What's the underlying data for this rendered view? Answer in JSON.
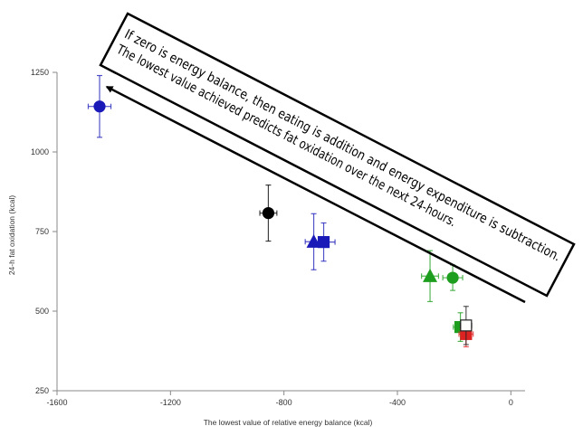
{
  "chart_data": {
    "type": "scatter",
    "title": "",
    "xlabel": "The lowest value of relative energy balance (kcal)",
    "ylabel": "24-h fat oxidation (kcal)",
    "xlim": [
      -1600,
      50
    ],
    "ylim": [
      250,
      1250
    ],
    "xticks": [
      -1600,
      -1200,
      -800,
      -400,
      0
    ],
    "yticks": [
      250,
      500,
      750,
      1000,
      1250
    ],
    "grid": false,
    "points": [
      {
        "x": -1450,
        "y": 1143,
        "xerr": 40,
        "yerr": 97,
        "shape": "circle",
        "fill": "#1a1ab8",
        "color": "#1a1ab8"
      },
      {
        "x": -855,
        "y": 808,
        "xerr": 30,
        "yerr": 88,
        "shape": "circle",
        "fill": "#000000",
        "color": "#000000"
      },
      {
        "x": -695,
        "y": 718,
        "xerr": 30,
        "yerr": 88,
        "shape": "triangle",
        "fill": "#1a1ab8",
        "color": "#1a1ab8"
      },
      {
        "x": -660,
        "y": 717,
        "xerr": 40,
        "yerr": 60,
        "shape": "square",
        "fill": "#1a1ab8",
        "color": "#1a1ab8"
      },
      {
        "x": -285,
        "y": 610,
        "xerr": 30,
        "yerr": 80,
        "shape": "triangle",
        "fill": "#1e9e1e",
        "color": "#1e9e1e"
      },
      {
        "x": -205,
        "y": 605,
        "xerr": 35,
        "yerr": 40,
        "shape": "circle",
        "fill": "#1e9e1e",
        "color": "#1e9e1e"
      },
      {
        "x": -178,
        "y": 450,
        "xerr": 25,
        "yerr": 45,
        "shape": "square",
        "fill": "#1e9e1e",
        "color": "#1e9e1e"
      },
      {
        "x": -158,
        "y": 428,
        "xerr": 25,
        "yerr": 40,
        "shape": "square",
        "fill": "#dd2222",
        "color": "#dd2222"
      },
      {
        "x": -158,
        "y": 455,
        "xerr": 20,
        "yerr": 60,
        "shape": "square",
        "fill": "#ffffff",
        "color": "#222222"
      }
    ]
  },
  "annotation": {
    "line1": "If zero is energy balance, then eating is addition and energy expenditure is subtraction.",
    "line2": "The lowest value achieved predicts fat oxidation over the next 24-hours."
  }
}
